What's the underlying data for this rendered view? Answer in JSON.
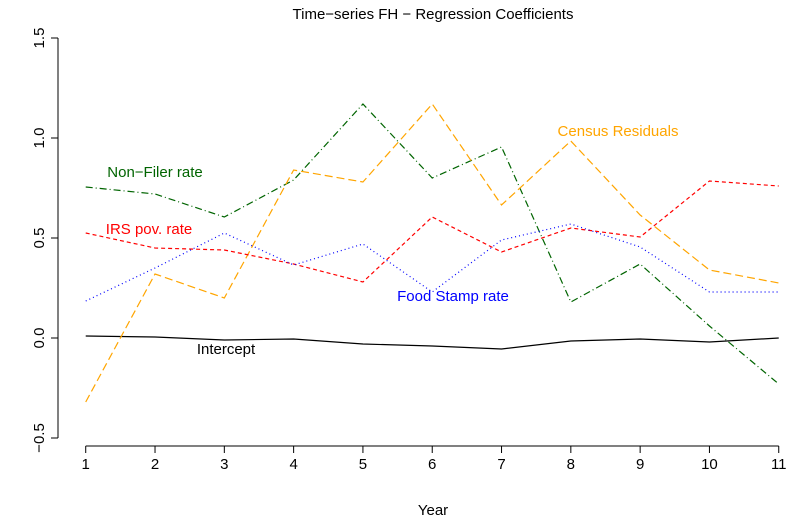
{
  "chart_data": {
    "type": "line",
    "title": "Time−series FH − Regression Coefficients",
    "x_label": "Year",
    "x": [
      1,
      2,
      3,
      4,
      5,
      6,
      7,
      8,
      9,
      10,
      11
    ],
    "xlim": [
      0.6,
      11.35
    ],
    "xticks": [
      1,
      2,
      3,
      4,
      5,
      6,
      7,
      8,
      9,
      10,
      11
    ],
    "ylim": [
      -0.51,
      1.58
    ],
    "yticks": [
      {
        "value": -0.5,
        "label": "−0.5"
      },
      {
        "value": 0,
        "label": "0.0"
      },
      {
        "value": 0.5,
        "label": "0.5"
      },
      {
        "value": 1,
        "label": "1.0"
      },
      {
        "value": 1.5,
        "label": "1.5"
      }
    ],
    "series": [
      {
        "name": "Intercept",
        "color": "#000000",
        "values": [
          0.01,
          0.005,
          -0.01,
          -0.005,
          -0.03,
          -0.04,
          -0.055,
          -0.015,
          -0.005,
          -0.02,
          0.0
        ]
      },
      {
        "name": "Non−Filer rate",
        "color": "#006400",
        "values": [
          0.755,
          0.72,
          0.605,
          0.79,
          1.17,
          0.8,
          0.955,
          0.18,
          0.37,
          0.06,
          -0.23
        ]
      },
      {
        "name": "Census Residuals",
        "color": "#ffa500",
        "values": [
          -0.32,
          0.32,
          0.2,
          0.84,
          0.78,
          1.17,
          0.665,
          0.985,
          0.615,
          0.34,
          0.275
        ]
      },
      {
        "name": "IRS pov. rate",
        "color": "#ff0000",
        "values": [
          0.525,
          0.45,
          0.44,
          0.37,
          0.28,
          0.605,
          0.43,
          0.55,
          0.505,
          0.785,
          0.76
        ]
      },
      {
        "name": "Food Stamp rate",
        "color": "#0000ff",
        "values": [
          0.185,
          0.35,
          0.525,
          0.365,
          0.47,
          0.23,
          0.49,
          0.57,
          0.455,
          0.23,
          0.23
        ]
      }
    ]
  }
}
